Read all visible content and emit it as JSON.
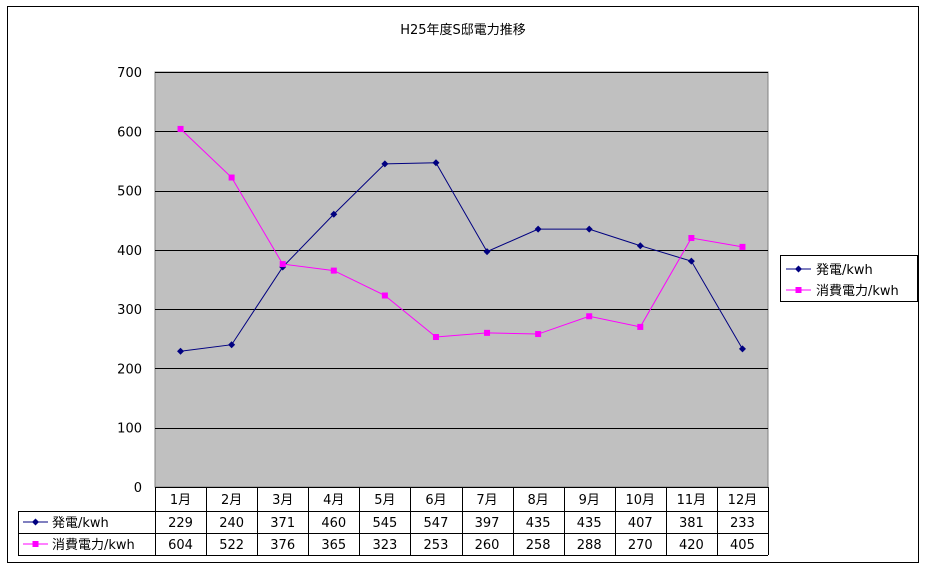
{
  "chart_data": {
    "type": "line",
    "title": "H25年度S邸電力推移",
    "categories": [
      "1月",
      "2月",
      "3月",
      "4月",
      "5月",
      "6月",
      "7月",
      "8月",
      "9月",
      "10月",
      "11月",
      "12月"
    ],
    "ylim": [
      0,
      700
    ],
    "yticks": [
      0,
      100,
      200,
      300,
      400,
      500,
      600,
      700
    ],
    "grid": true,
    "legend_position": "right",
    "data_table": true,
    "series": [
      {
        "name": "発電/kwh",
        "color": "#000080",
        "marker": "diamond",
        "values": [
          229,
          240,
          371,
          460,
          545,
          547,
          397,
          435,
          435,
          407,
          381,
          233
        ]
      },
      {
        "name": "消費電力/kwh",
        "color": "#FF00FF",
        "marker": "square",
        "values": [
          604,
          522,
          376,
          365,
          323,
          253,
          260,
          258,
          288,
          270,
          420,
          405
        ]
      }
    ],
    "plot_background": "#C0C0C0"
  }
}
